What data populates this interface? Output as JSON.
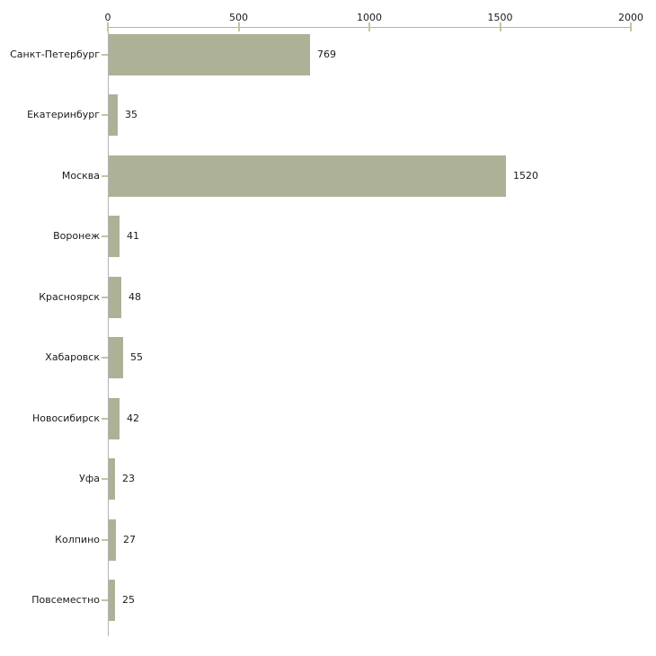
{
  "chart_data": {
    "type": "bar",
    "orientation": "horizontal",
    "title": "",
    "xlabel": "",
    "ylabel": "",
    "categories": [
      "Санкт-Петербург",
      "Екатеринбург",
      "Москва",
      "Воронеж",
      "Красноярск",
      "Хабаровск",
      "Новосибирск",
      "Уфа",
      "Колпино",
      "Повсеместно"
    ],
    "values": [
      769,
      35,
      1520,
      41,
      48,
      55,
      42,
      23,
      27,
      25
    ],
    "value_labels": [
      "769",
      "35",
      "1520",
      "41",
      "48",
      "55",
      "42",
      "23",
      "27",
      "25"
    ],
    "xlim": [
      0,
      2000
    ],
    "x_ticks": [
      0,
      500,
      1000,
      1500,
      2000
    ],
    "x_tick_labels": [
      "0",
      "500",
      "1000",
      "1500",
      "2000"
    ],
    "axis_position": "top",
    "grid": false,
    "legend": false,
    "colors": {
      "bar_fill": "#adb296",
      "axis_line": "#b3b3b3",
      "tick_mark": "#c5c5a0",
      "text": "#1a1a1a",
      "background": "#ffffff"
    }
  }
}
